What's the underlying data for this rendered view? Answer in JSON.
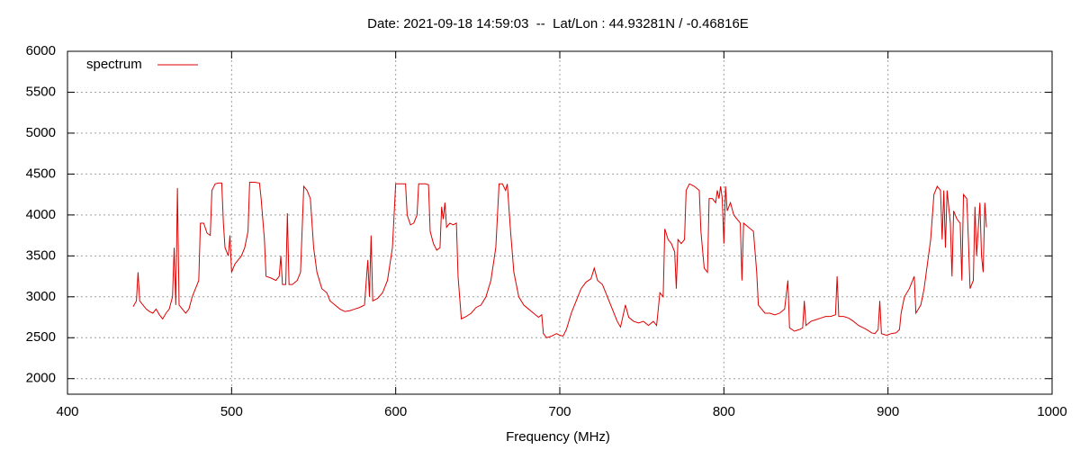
{
  "chart_data": {
    "type": "line",
    "title": "Date: 2021-09-18 14:59:03  --  Lat/Lon : 44.93281N / -0.46816E",
    "x_label": "Frequency (MHz)",
    "xlim": [
      400,
      1000
    ],
    "xticks": [
      400,
      500,
      600,
      700,
      800,
      900,
      1000
    ],
    "ylim": [
      1810,
      6000
    ],
    "yticks": [
      2000,
      2500,
      3000,
      3500,
      4000,
      4500,
      5000,
      5500,
      6000
    ],
    "grid": true,
    "legend": "top-left",
    "x": [
      440,
      442,
      443,
      444,
      446,
      448,
      450,
      452,
      454,
      456,
      458,
      460,
      462,
      464,
      465,
      466,
      467,
      468,
      470,
      472,
      474,
      476,
      478,
      480,
      481,
      483,
      485,
      487,
      488,
      490,
      492,
      494,
      495,
      496,
      498,
      499,
      500,
      502,
      504,
      506,
      508,
      510,
      511,
      514,
      517,
      518,
      520,
      521,
      524,
      527,
      529,
      530,
      531,
      533,
      534,
      535,
      537,
      540,
      542,
      544,
      546,
      548,
      550,
      552,
      555,
      558,
      560,
      563,
      566,
      569,
      572,
      575,
      578,
      581,
      583,
      584,
      585,
      586,
      589,
      592,
      595,
      598,
      600,
      603,
      606,
      607,
      609,
      611,
      613,
      614,
      618,
      620,
      621,
      623,
      625,
      627,
      628,
      629,
      630,
      631,
      633,
      635,
      637,
      638,
      640,
      643,
      646,
      649,
      652,
      655,
      658,
      661,
      663,
      665,
      667,
      668,
      670,
      672,
      675,
      678,
      681,
      684,
      687,
      689,
      690,
      692,
      695,
      698,
      700,
      702,
      704,
      707,
      710,
      713,
      716,
      719,
      721,
      723,
      726,
      729,
      732,
      735,
      737,
      740,
      742,
      745,
      748,
      751,
      754,
      757,
      759,
      761,
      763,
      764,
      766,
      768,
      770,
      771,
      772,
      774,
      776,
      777,
      779,
      782,
      785,
      786,
      788,
      790,
      791,
      793,
      795,
      796,
      797,
      798,
      799,
      800,
      801,
      802,
      804,
      806,
      808,
      810,
      811,
      812,
      815,
      818,
      820,
      821,
      823,
      825,
      828,
      831,
      834,
      837,
      839,
      840,
      843,
      846,
      848,
      849,
      850,
      853,
      856,
      859,
      862,
      865,
      868,
      869,
      870,
      873,
      876,
      879,
      882,
      885,
      887,
      890,
      892,
      894,
      895,
      896,
      899,
      902,
      905,
      907,
      908,
      910,
      913,
      916,
      917,
      920,
      922,
      924,
      926,
      928,
      930,
      932,
      933,
      934,
      935,
      936,
      938,
      939,
      940,
      942,
      944,
      945,
      946,
      948,
      949,
      950,
      952,
      953,
      954,
      956,
      957,
      958,
      959,
      960
    ],
    "series": [
      {
        "name": "spectrum",
        "color": "#dd0000",
        "values": [
          2880,
          2950,
          3300,
          2950,
          2900,
          2850,
          2820,
          2800,
          2850,
          2780,
          2730,
          2800,
          2850,
          3000,
          3600,
          2900,
          4330,
          2900,
          2850,
          2800,
          2850,
          3000,
          3100,
          3200,
          3900,
          3900,
          3780,
          3750,
          4300,
          4380,
          4390,
          4390,
          3900,
          3600,
          3500,
          3750,
          3300,
          3400,
          3450,
          3500,
          3600,
          3800,
          4400,
          4400,
          4390,
          4200,
          3700,
          3250,
          3230,
          3200,
          3250,
          3500,
          3150,
          3150,
          4020,
          3150,
          3150,
          3200,
          3300,
          4350,
          4300,
          4200,
          3600,
          3300,
          3100,
          3050,
          2950,
          2900,
          2850,
          2820,
          2830,
          2850,
          2870,
          2900,
          3450,
          3000,
          3750,
          2950,
          2980,
          3050,
          3200,
          3600,
          4380,
          4380,
          4380,
          4000,
          3880,
          3900,
          4000,
          4380,
          4380,
          4370,
          3800,
          3650,
          3570,
          3600,
          4100,
          3950,
          4150,
          3850,
          3900,
          3880,
          3900,
          3250,
          2730,
          2760,
          2800,
          2870,
          2900,
          3000,
          3200,
          3600,
          4380,
          4380,
          4300,
          4380,
          3800,
          3300,
          3000,
          2900,
          2850,
          2800,
          2750,
          2780,
          2550,
          2500,
          2520,
          2550,
          2530,
          2520,
          2600,
          2800,
          2950,
          3100,
          3180,
          3220,
          3350,
          3200,
          3150,
          3000,
          2850,
          2700,
          2630,
          2900,
          2750,
          2700,
          2680,
          2700,
          2650,
          2700,
          2650,
          3050,
          3000,
          3830,
          3700,
          3650,
          3550,
          3100,
          3700,
          3650,
          3700,
          4300,
          4380,
          4350,
          4300,
          3800,
          3350,
          3300,
          4200,
          4200,
          4150,
          4300,
          4200,
          4350,
          4200,
          3650,
          4350,
          4050,
          4150,
          4000,
          3950,
          3900,
          3200,
          3900,
          3850,
          3800,
          3300,
          2900,
          2850,
          2800,
          2800,
          2780,
          2800,
          2850,
          3200,
          2620,
          2580,
          2600,
          2620,
          2950,
          2650,
          2700,
          2720,
          2740,
          2760,
          2760,
          2780,
          3250,
          2760,
          2760,
          2740,
          2700,
          2650,
          2620,
          2600,
          2560,
          2550,
          2600,
          2950,
          2550,
          2530,
          2550,
          2560,
          2600,
          2800,
          3000,
          3100,
          3250,
          2800,
          2900,
          3100,
          3400,
          3700,
          4250,
          4350,
          4300,
          3700,
          4300,
          3600,
          4300,
          3900,
          3250,
          4050,
          3950,
          3900,
          3200,
          4250,
          4200,
          3700,
          3100,
          3200,
          4100,
          3500,
          4150,
          3500,
          3300,
          4150,
          3850
        ]
      }
    ]
  }
}
